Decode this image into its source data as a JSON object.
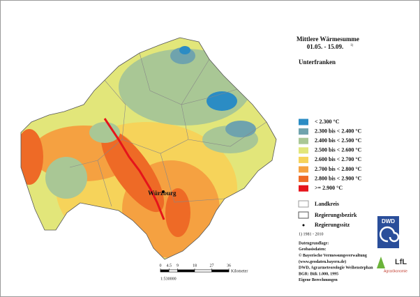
{
  "title": "Mittlere Wärmesumme",
  "period": "01.05. - 15.09.",
  "period_note": "1)",
  "region": "Unterfranken",
  "legend": [
    {
      "label": "< 2.300 °C",
      "color": "#2b8cc4"
    },
    {
      "label": "2.300 bis < 2.400 °C",
      "color": "#6fa3ad"
    },
    {
      "label": "2.400 bis < 2.500 °C",
      "color": "#a9c795"
    },
    {
      "label": "2.500 bis < 2.600 °C",
      "color": "#e2e67a"
    },
    {
      "label": "2.600 bis < 2.700 °C",
      "color": "#f6d35a"
    },
    {
      "label": "2.700 bis < 2.800 °C",
      "color": "#f5a141"
    },
    {
      "label": "2.800 bis < 2.900 °C",
      "color": "#ee6a26"
    },
    {
      "label": ">= 2.900 °C",
      "color": "#e5141b"
    }
  ],
  "boundary_legend": {
    "district": "Landkreis",
    "region_border": "Regierungsbezirk",
    "seat": "Regierungssitz"
  },
  "footnote": "1) 1981 - 2010",
  "sources": [
    "Datengrundlage:",
    "Geobasisdaten:",
    "© Bayerische Vermessungsverwaltung",
    "(www.geodaten.bayern.de)",
    "DWD, Agrarmeteorologie Weihenstephan",
    "BGR: Bük 1.000, 1995",
    "Eigene Berechnungen"
  ],
  "city": "Würzburg",
  "scale": {
    "ticks": [
      0,
      4.5,
      9,
      18,
      27,
      36
    ],
    "unit": "Kilometer",
    "ratio": "1:530000"
  },
  "logos": {
    "dwd": "DWD",
    "lfl": "LfL",
    "lfl_sub": "Agrarökonomie"
  }
}
